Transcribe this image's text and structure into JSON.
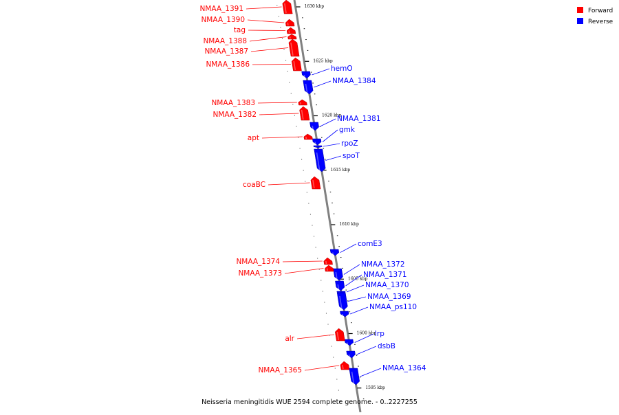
{
  "caption": "Neisseria meningitidis WUE 2594 complete genome. - 0..2227255",
  "legend": [
    {
      "label": "Forward",
      "color": "#ff0000"
    },
    {
      "label": "Reverse",
      "color": "#0000ff"
    }
  ],
  "colors": {
    "forward": "#ff0000",
    "reverse": "#0000ff",
    "axis": "#808080"
  },
  "ruler": [
    {
      "label": "1630 kbp",
      "kbp": 1630
    },
    {
      "label": "1625 kbp",
      "kbp": 1625
    },
    {
      "label": "1620 kbp",
      "kbp": 1620
    },
    {
      "label": "1615 kbp",
      "kbp": 1615
    },
    {
      "label": "1610 kbp",
      "kbp": 1610
    },
    {
      "label": "1605 kbp",
      "kbp": 1605
    },
    {
      "label": "1600 kbp",
      "kbp": 1600
    },
    {
      "label": "1595 kbp",
      "kbp": 1595
    }
  ],
  "genes": [
    {
      "name": "NMAA_1391",
      "strand": "forward"
    },
    {
      "name": "NMAA_1390",
      "strand": "forward"
    },
    {
      "name": "tag",
      "strand": "forward"
    },
    {
      "name": "NMAA_1388",
      "strand": "forward"
    },
    {
      "name": "NMAA_1387",
      "strand": "forward"
    },
    {
      "name": "NMAA_1386",
      "strand": "forward"
    },
    {
      "name": "hemO",
      "strand": "reverse"
    },
    {
      "name": "NMAA_1384",
      "strand": "reverse"
    },
    {
      "name": "NMAA_1383",
      "strand": "forward"
    },
    {
      "name": "NMAA_1382",
      "strand": "forward"
    },
    {
      "name": "NMAA_1381",
      "strand": "reverse"
    },
    {
      "name": "gmk",
      "strand": "reverse"
    },
    {
      "name": "apt",
      "strand": "forward"
    },
    {
      "name": "rpoZ",
      "strand": "reverse"
    },
    {
      "name": "spoT",
      "strand": "reverse"
    },
    {
      "name": "coaBC",
      "strand": "forward"
    },
    {
      "name": "comE3",
      "strand": "reverse"
    },
    {
      "name": "NMAA_1374",
      "strand": "forward"
    },
    {
      "name": "NMAA_1372",
      "strand": "reverse"
    },
    {
      "name": "NMAA_1373",
      "strand": "forward"
    },
    {
      "name": "NMAA_1371",
      "strand": "reverse"
    },
    {
      "name": "NMAA_1370",
      "strand": "reverse"
    },
    {
      "name": "NMAA_1369",
      "strand": "reverse"
    },
    {
      "name": "NMAA_ps110",
      "strand": "reverse"
    },
    {
      "name": "lrp",
      "strand": "reverse"
    },
    {
      "name": "alr",
      "strand": "forward"
    },
    {
      "name": "dsbB",
      "strand": "reverse"
    },
    {
      "name": "NMAA_1365",
      "strand": "forward"
    },
    {
      "name": "NMAA_1364",
      "strand": "reverse"
    }
  ]
}
